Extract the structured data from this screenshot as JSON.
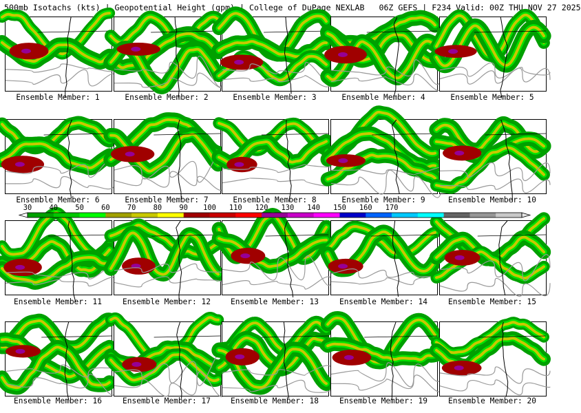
{
  "header": {
    "left_title": "500mb Isotachs (kts) | Geopotential Height (gpm) | College of DuPage NEXLAB",
    "right_title": "06Z GEFS | F234 Valid: 00Z THU NOV 27 2025"
  },
  "panels": [
    {
      "member": 1,
      "caption": "Ensemble Member: 1"
    },
    {
      "member": 2,
      "caption": "Ensemble Member: 2"
    },
    {
      "member": 3,
      "caption": "Ensemble Member: 3"
    },
    {
      "member": 4,
      "caption": "Ensemble Member: 4"
    },
    {
      "member": 5,
      "caption": "Ensemble Member: 5"
    },
    {
      "member": 6,
      "caption": "Ensemble Member: 6"
    },
    {
      "member": 7,
      "caption": "Ensemble Member: 7"
    },
    {
      "member": 8,
      "caption": "Ensemble Member: 8"
    },
    {
      "member": 9,
      "caption": "Ensemble Member: 9"
    },
    {
      "member": 10,
      "caption": "Ensemble Member: 10"
    },
    {
      "member": 11,
      "caption": "Ensemble Member: 11"
    },
    {
      "member": 12,
      "caption": "Ensemble Member: 12"
    },
    {
      "member": 13,
      "caption": "Ensemble Member: 13"
    },
    {
      "member": 14,
      "caption": "Ensemble Member: 14"
    },
    {
      "member": 15,
      "caption": "Ensemble Member: 15"
    },
    {
      "member": 16,
      "caption": "Ensemble Member: 16"
    },
    {
      "member": 17,
      "caption": "Ensemble Member: 17"
    },
    {
      "member": 18,
      "caption": "Ensemble Member: 18"
    },
    {
      "member": 19,
      "caption": "Ensemble Member: 19"
    },
    {
      "member": 20,
      "caption": "Ensemble Member: 20"
    }
  ],
  "colorbar": {
    "units": "kts",
    "labels": [
      "30",
      "40",
      "50",
      "60",
      "70",
      "80",
      "90",
      "100",
      "110",
      "120",
      "130",
      "140",
      "150",
      "160",
      "170"
    ],
    "colors": [
      "#00a000",
      "#00c800",
      "#00ff00",
      "#a0a000",
      "#c8c800",
      "#ffff00",
      "#a00000",
      "#c80000",
      "#ff0000",
      "#960096",
      "#c800c8",
      "#ff00ff",
      "#0000c8",
      "#0064ff",
      "#00c8ff",
      "#00ffff",
      "#646464",
      "#969696",
      "#c8c8c8"
    ]
  },
  "map_colors": {
    "jet_green": "#00a000",
    "jet_light": "#00ff00",
    "jet_yellow": "#c8c800",
    "jet_red": "#a00000",
    "jet_purple": "#960096",
    "height_contour": "#999999",
    "coastline": "#000000"
  }
}
